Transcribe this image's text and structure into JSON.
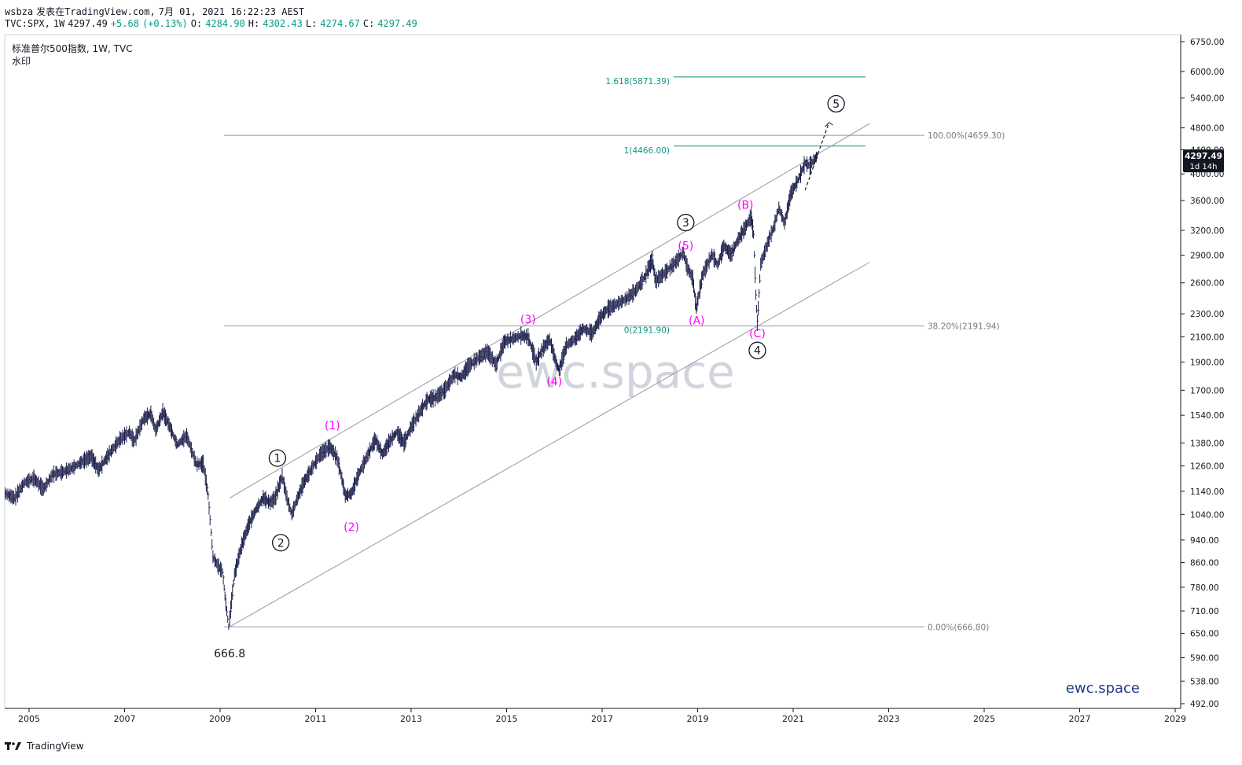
{
  "header": {
    "publisher": "wsbza",
    "published_text": "发表在TradingView.com,",
    "datetime": "7月 01, 2021 16:22:23 AEST",
    "symbol": "TVC:SPX,",
    "interval": "1W",
    "last": "4297.49",
    "change": "+5.68",
    "change_pct": "(+0.13%)",
    "o_label": "O:",
    "o_value": "4284.90",
    "h_label": "H:",
    "h_value": "4302.43",
    "l_label": "L:",
    "l_value": "4274.67",
    "c_label": "C:",
    "c_value": "4297.49"
  },
  "legend": {
    "title": "标准普尔500指数, 1W, TVC",
    "subtitle": "水印"
  },
  "footer": {
    "brand": "TradingView"
  },
  "colors": {
    "price_bars": "#1b1f4b",
    "wave_magenta": "#ff00ff",
    "fib_teal": "#089981",
    "grid_line": "#9598a1",
    "watermark": "#d1d4dc",
    "brand_blue": "#1e3a8a",
    "price_tag": "#131722"
  },
  "chart_data": {
    "type": "line",
    "scale": "log",
    "x_axis": {
      "labels": [
        "2005",
        "2007",
        "2009",
        "2011",
        "2013",
        "2015",
        "2017",
        "2019",
        "2021",
        "2023",
        "2025",
        "2027",
        "2029"
      ],
      "range": [
        2004.5,
        2029.2
      ]
    },
    "y_axis": {
      "labels": [
        "6750.00",
        "6000.00",
        "5400.00",
        "4800.00",
        "4400.00",
        "4000.00",
        "3600.00",
        "3200.00",
        "2900.00",
        "2600.00",
        "2300.00",
        "2100.00",
        "1900.00",
        "1700.00",
        "1540.00",
        "1380.00",
        "1260.00",
        "1140.00",
        "1040.00",
        "940.00",
        "860.00",
        "780.00",
        "710.00",
        "650.00",
        "590.00",
        "538.00",
        "492.00"
      ],
      "range": [
        475,
        7050
      ]
    },
    "series": [
      {
        "values": [
          [
            2004.5,
            1130
          ],
          [
            2004.7,
            1110
          ],
          [
            2004.9,
            1180
          ],
          [
            2005.1,
            1200
          ],
          [
            2005.3,
            1150
          ],
          [
            2005.5,
            1220
          ],
          [
            2005.7,
            1230
          ],
          [
            2005.9,
            1250
          ],
          [
            2006.1,
            1280
          ],
          [
            2006.3,
            1310
          ],
          [
            2006.45,
            1240
          ],
          [
            2006.7,
            1330
          ],
          [
            2006.9,
            1400
          ],
          [
            2007.1,
            1440
          ],
          [
            2007.2,
            1390
          ],
          [
            2007.4,
            1520
          ],
          [
            2007.55,
            1550
          ],
          [
            2007.65,
            1450
          ],
          [
            2007.8,
            1560
          ],
          [
            2007.95,
            1470
          ],
          [
            2008.1,
            1370
          ],
          [
            2008.3,
            1420
          ],
          [
            2008.5,
            1270
          ],
          [
            2008.65,
            1270
          ],
          [
            2008.75,
            1120
          ],
          [
            2008.85,
            880
          ],
          [
            2008.95,
            850
          ],
          [
            2009.05,
            830
          ],
          [
            2009.12,
            730
          ],
          [
            2009.18,
            667
          ],
          [
            2009.3,
            820
          ],
          [
            2009.45,
            920
          ],
          [
            2009.6,
            1000
          ],
          [
            2009.75,
            1060
          ],
          [
            2009.9,
            1110
          ],
          [
            2010.05,
            1090
          ],
          [
            2010.15,
            1110
          ],
          [
            2010.3,
            1210
          ],
          [
            2010.4,
            1110
          ],
          [
            2010.5,
            1040
          ],
          [
            2010.6,
            1100
          ],
          [
            2010.75,
            1180
          ],
          [
            2010.9,
            1240
          ],
          [
            2011.1,
            1320
          ],
          [
            2011.3,
            1360
          ],
          [
            2011.45,
            1300
          ],
          [
            2011.55,
            1200
          ],
          [
            2011.62,
            1120
          ],
          [
            2011.75,
            1130
          ],
          [
            2011.9,
            1220
          ],
          [
            2012.1,
            1320
          ],
          [
            2012.25,
            1400
          ],
          [
            2012.4,
            1320
          ],
          [
            2012.55,
            1390
          ],
          [
            2012.7,
            1440
          ],
          [
            2012.85,
            1380
          ],
          [
            2013.0,
            1470
          ],
          [
            2013.2,
            1570
          ],
          [
            2013.35,
            1640
          ],
          [
            2013.5,
            1650
          ],
          [
            2013.7,
            1700
          ],
          [
            2013.9,
            1810
          ],
          [
            2014.05,
            1790
          ],
          [
            2014.2,
            1870
          ],
          [
            2014.4,
            1930
          ],
          [
            2014.6,
            1980
          ],
          [
            2014.78,
            1880
          ],
          [
            2014.95,
            2060
          ],
          [
            2015.1,
            2080
          ],
          [
            2015.3,
            2110
          ],
          [
            2015.45,
            2100
          ],
          [
            2015.62,
            1900
          ],
          [
            2015.75,
            2000
          ],
          [
            2015.9,
            2080
          ],
          [
            2016.05,
            1880
          ],
          [
            2016.1,
            1840
          ],
          [
            2016.25,
            2030
          ],
          [
            2016.45,
            2090
          ],
          [
            2016.6,
            2170
          ],
          [
            2016.8,
            2130
          ],
          [
            2016.95,
            2260
          ],
          [
            2017.1,
            2340
          ],
          [
            2017.3,
            2390
          ],
          [
            2017.5,
            2440
          ],
          [
            2017.7,
            2520
          ],
          [
            2017.9,
            2670
          ],
          [
            2018.05,
            2850
          ],
          [
            2018.12,
            2620
          ],
          [
            2018.3,
            2700
          ],
          [
            2018.5,
            2800
          ],
          [
            2018.7,
            2930
          ],
          [
            2018.78,
            2770
          ],
          [
            2018.9,
            2640
          ],
          [
            2018.97,
            2350
          ],
          [
            2019.1,
            2680
          ],
          [
            2019.3,
            2910
          ],
          [
            2019.42,
            2790
          ],
          [
            2019.55,
            3010
          ],
          [
            2019.7,
            2910
          ],
          [
            2019.85,
            3090
          ],
          [
            2020.0,
            3240
          ],
          [
            2020.12,
            3380
          ],
          [
            2020.17,
            3150
          ],
          [
            2020.22,
            2480
          ],
          [
            2020.25,
            2220
          ],
          [
            2020.32,
            2800
          ],
          [
            2020.5,
            3100
          ],
          [
            2020.6,
            3250
          ],
          [
            2020.7,
            3500
          ],
          [
            2020.82,
            3290
          ],
          [
            2020.95,
            3700
          ],
          [
            2021.1,
            3900
          ],
          [
            2021.25,
            4180
          ],
          [
            2021.35,
            4130
          ],
          [
            2021.45,
            4240
          ],
          [
            2021.5,
            4297.49
          ]
        ]
      }
    ],
    "fibonacci": [
      {
        "label": "100.00%(4659.30)",
        "value": 4659.3
      },
      {
        "label": "38.20%(2191.94)",
        "value": 2191.94
      },
      {
        "label": "0.00%(666.80)",
        "value": 666.8
      }
    ],
    "fib_extension": [
      {
        "label": "1.618(5871.39)",
        "value": 5871.39
      },
      {
        "label": "1(4466.00)",
        "value": 4466.0
      },
      {
        "label": "0(2191.90)",
        "value": 2191.9
      }
    ],
    "channel": {
      "upper": [
        [
          2009.2,
          1110
        ],
        [
          2022.6,
          4880
        ]
      ],
      "lower": [
        [
          2009.2,
          667
        ],
        [
          2022.6,
          2820
        ]
      ]
    },
    "waves": [
      {
        "label": "1",
        "style": "circle",
        "x": 2010.2,
        "price": 1300
      },
      {
        "label": "2",
        "style": "circle",
        "x": 2010.27,
        "price": 930
      },
      {
        "label": "3",
        "style": "circle",
        "x": 2018.75,
        "price": 3300
      },
      {
        "label": "4",
        "style": "circle",
        "x": 2020.25,
        "price": 1990
      },
      {
        "label": "5",
        "style": "circle",
        "x": 2021.9,
        "price": 5280
      },
      {
        "label": "(1)",
        "style": "paren",
        "x": 2011.35,
        "price": 1480
      },
      {
        "label": "(2)",
        "style": "paren",
        "x": 2011.75,
        "price": 990
      },
      {
        "label": "(3)",
        "style": "paren",
        "x": 2015.45,
        "price": 2250
      },
      {
        "label": "(4)",
        "style": "paren",
        "x": 2016.0,
        "price": 1760
      },
      {
        "label": "(5)",
        "style": "paren",
        "x": 2018.75,
        "price": 3010
      },
      {
        "label": "(A)",
        "style": "paren",
        "x": 2018.98,
        "price": 2240
      },
      {
        "label": "(B)",
        "style": "paren",
        "x": 2020.0,
        "price": 3540
      },
      {
        "label": "(C)",
        "style": "paren",
        "x": 2020.25,
        "price": 2130
      }
    ],
    "low_label": {
      "text": "666.8",
      "x": 2009.2,
      "price": 600
    },
    "projection": [
      [
        2021.25,
        3750
      ],
      [
        2021.75,
        4900
      ]
    ],
    "last_price": {
      "value": "4297.49",
      "countdown": "1d 14h"
    },
    "watermark": "ewc.space",
    "brand": "ewc.space"
  }
}
